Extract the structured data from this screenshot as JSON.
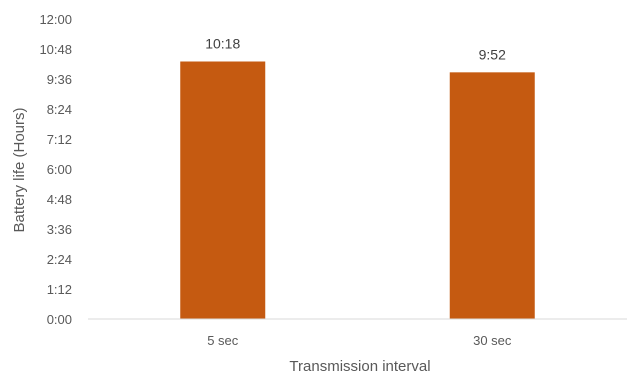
{
  "chart_data": {
    "type": "bar",
    "title": "",
    "xlabel": "Transmission interval",
    "ylabel": "Battery life (Hours)",
    "categories": [
      "5 sec",
      "30 sec"
    ],
    "values": [
      618,
      592
    ],
    "value_labels": [
      "10:18",
      "9:52"
    ],
    "value_unit": "minutes",
    "ylim": [
      0,
      720
    ],
    "y_ticks": [
      0,
      72,
      144,
      216,
      288,
      360,
      432,
      504,
      576,
      648,
      720
    ],
    "y_tick_labels": [
      "0:00",
      "1:12",
      "2:24",
      "3:36",
      "4:48",
      "6:00",
      "7:12",
      "8:24",
      "9:36",
      "10:48",
      "12:00"
    ],
    "grid": false,
    "legend": "none",
    "bar_color": "#C55A11",
    "axis_color": "#D9D9D9"
  }
}
